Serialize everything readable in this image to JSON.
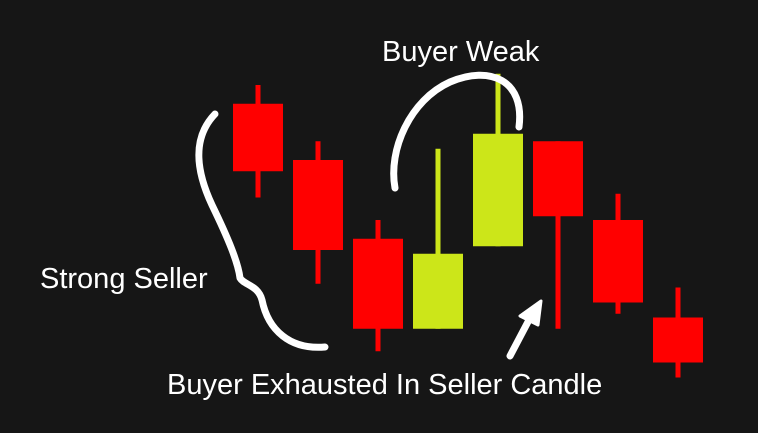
{
  "chart_data": {
    "type": "candlestick",
    "colors": {
      "background": "#161616",
      "bearish": "#ff0000",
      "bullish": "#cce619",
      "annotation": "#ffffff"
    },
    "candles": [
      {
        "dir": "bear",
        "open": 98,
        "close": 80,
        "high": 103,
        "low": 73
      },
      {
        "dir": "bear",
        "open": 83,
        "close": 59,
        "high": 88,
        "low": 50
      },
      {
        "dir": "bear",
        "open": 62,
        "close": 38,
        "high": 67,
        "low": 32
      },
      {
        "dir": "bull",
        "open": 38,
        "close": 58,
        "high": 86,
        "low": 38
      },
      {
        "dir": "bull",
        "open": 60,
        "close": 90,
        "high": 106,
        "low": 60
      },
      {
        "dir": "bear",
        "open": 88,
        "close": 68,
        "high": 88,
        "low": 38
      },
      {
        "dir": "bear",
        "open": 67,
        "close": 45,
        "high": 74,
        "low": 42
      },
      {
        "dir": "bear",
        "open": 41,
        "close": 29,
        "high": 49,
        "low": 25
      }
    ],
    "ylim": [
      15,
      115
    ],
    "annotations": {
      "buyer_weak": "Buyer Weak",
      "strong_seller": "Strong Seller",
      "buyer_exhausted": "Buyer Exhausted In Seller Candle"
    }
  }
}
